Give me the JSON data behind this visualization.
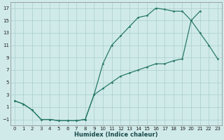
{
  "xlabel": "Humidex (Indice chaleur)",
  "background_color": "#d0eaea",
  "grid_color": "#aacccc",
  "line_color": "#2a7a6a",
  "xlim": [
    -0.5,
    23.5
  ],
  "ylim": [
    -2.0,
    18.0
  ],
  "xticks": [
    0,
    1,
    2,
    3,
    4,
    5,
    6,
    7,
    8,
    9,
    10,
    11,
    12,
    13,
    14,
    15,
    16,
    17,
    18,
    19,
    20,
    21,
    22,
    23
  ],
  "yticks": [
    -1,
    1,
    3,
    5,
    7,
    9,
    11,
    13,
    15,
    17
  ],
  "curve1_x": [
    0,
    1,
    2,
    3,
    4,
    5,
    6,
    7,
    8,
    9,
    10,
    11,
    12,
    13,
    14,
    15,
    16,
    17,
    18,
    19,
    20,
    21
  ],
  "curve1_y": [
    2.0,
    1.5,
    0.5,
    -1.0,
    -1.0,
    -1.2,
    -1.2,
    -1.2,
    -1.0,
    3.0,
    8.0,
    11.0,
    12.5,
    14.0,
    15.5,
    15.8,
    17.0,
    16.8,
    16.5,
    16.5,
    15.0,
    16.5
  ],
  "curve2_x": [
    0,
    1,
    2,
    3,
    4,
    5,
    6,
    7,
    8,
    9,
    10,
    11,
    12,
    13,
    14,
    15,
    16,
    17,
    18,
    19,
    20,
    21,
    22,
    23
  ],
  "curve2_y": [
    2.0,
    1.5,
    0.5,
    -1.0,
    -1.0,
    -1.2,
    -1.2,
    -1.2,
    -1.0,
    3.0,
    4.0,
    5.0,
    6.0,
    6.5,
    7.0,
    7.5,
    8.0,
    8.0,
    8.5,
    8.8,
    15.0,
    13.0,
    11.0,
    8.8
  ]
}
